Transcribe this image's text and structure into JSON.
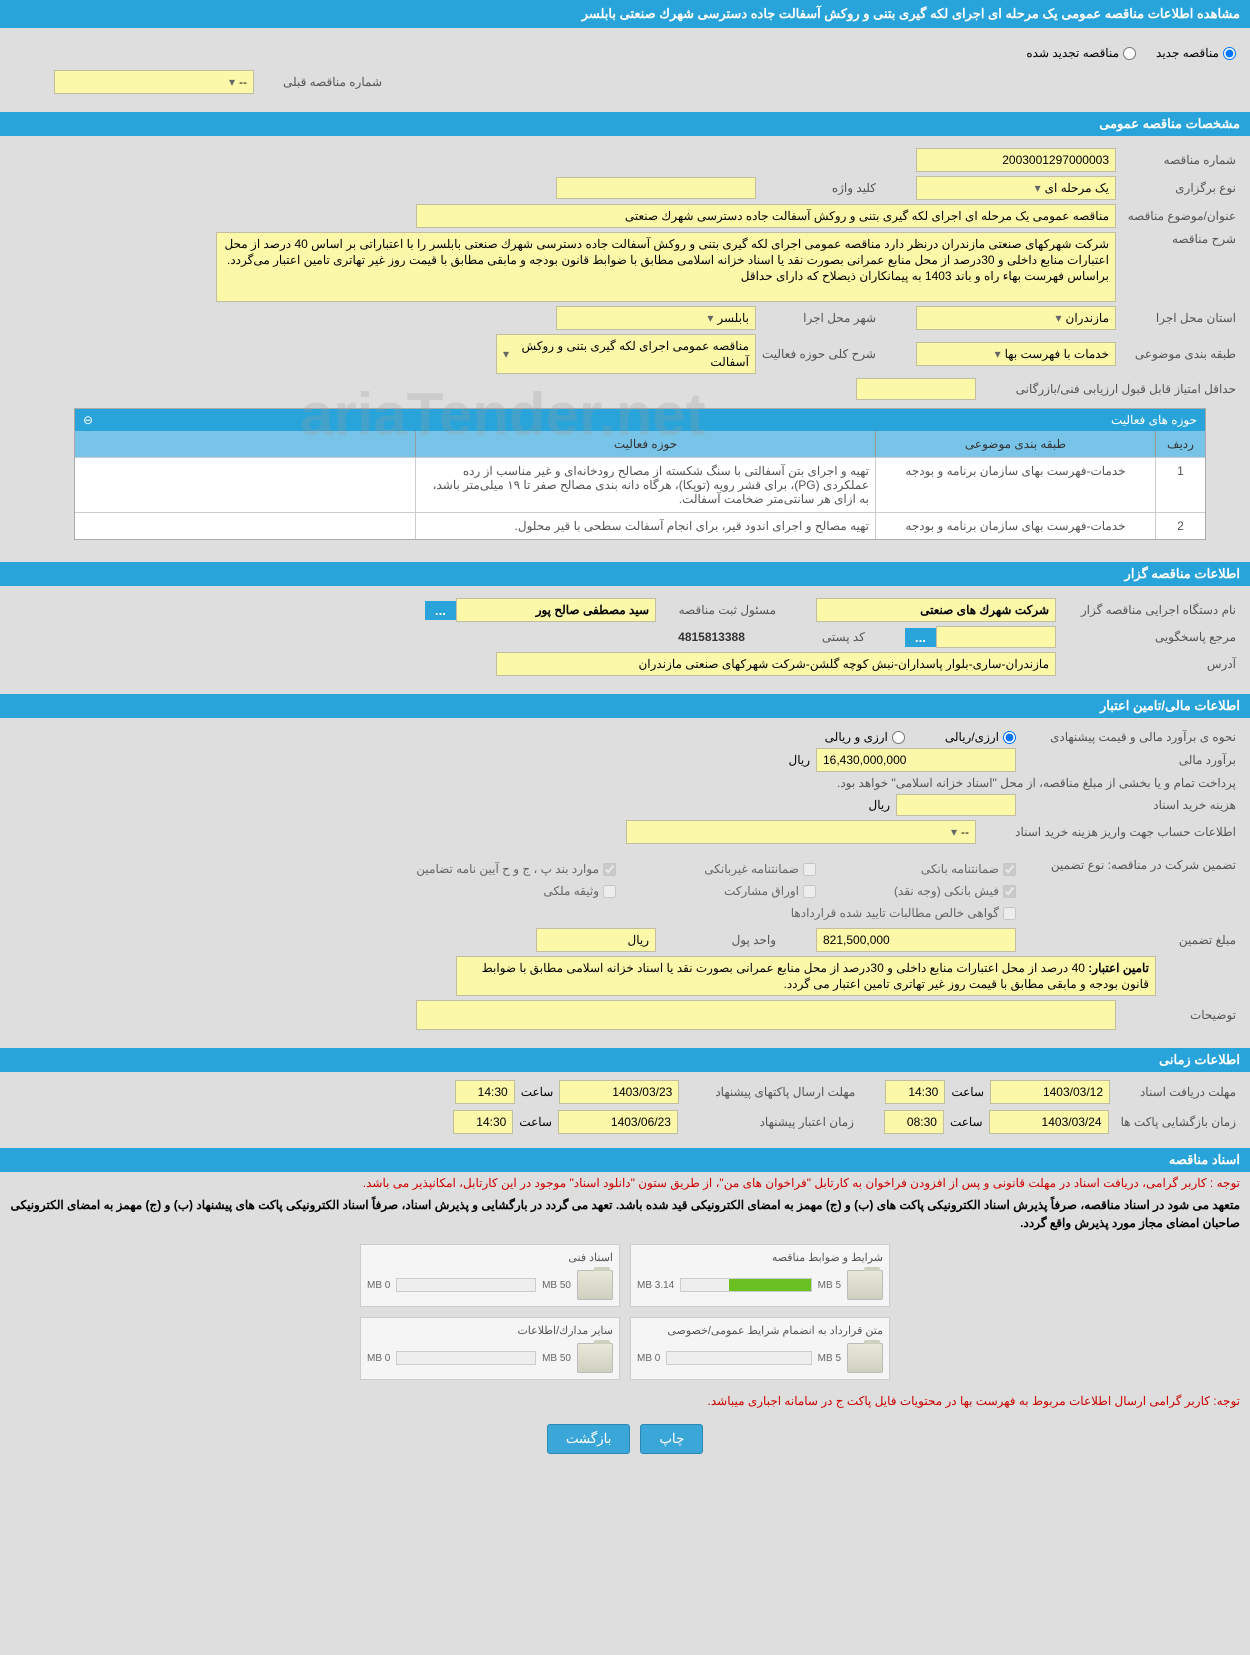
{
  "page_title": "مشاهده اطلاعات مناقصه عمومی یک مرحله ای اجرای لکه گیری بتنی و روکش آسفالت جاده دسترسی شهرك صنعتی بابلسر",
  "status_radios": {
    "new": "مناقصه جدید",
    "renewed": "مناقصه تجدید شده"
  },
  "top_left": {
    "prev_label": "شماره مناقصه قبلی",
    "prev_value": "--"
  },
  "sections": {
    "general": "مشخصات مناقصه عمومی",
    "holder": "اطلاعات مناقصه گزار",
    "finance": "اطلاعات مالی/تامین اعتبار",
    "time": "اطلاعات زمانی",
    "docs": "اسناد مناقصه"
  },
  "general": {
    "tender_no_label": "شماره مناقصه",
    "tender_no": "2003001297000003",
    "keyword_label": "کلید واژه",
    "keyword": "",
    "type_label": "نوع برگزاری",
    "type_value": "یک مرحله ای",
    "title_label": "عنوان/موضوع مناقصه",
    "title_value": "مناقصه عمومی یک مرحله ای اجرای لکه گیری بتنی و روکش آسفالت جاده دسترسی شهرك صنعتی",
    "desc_label": "شرح مناقصه",
    "desc_value": "شرکت شهرکهای صنعتی مازندران درنظر دارد مناقصه عمومی اجرای لکه گیری بتنی و روکش آسفالت جاده دسترسی شهرك صنعتی بابلسر را با اعتباراتی بر اساس 40 درصد از محل اعتبارات منابع داخلی و 30درصد از محل منابع عمرانی بصورت نقد یا اسناد خزانه اسلامی مطابق با ضوابط قانون بودجه و مابقی مطابق با قیمت روز غیر تهاتری تامین اعتبار می‌گردد.  براساس فهرست بهاء راه و باند 1403 به پیمانکاران ذیصلاح که دارای حداقل",
    "province_label": "استان محل اجرا",
    "province": "مازندران",
    "city_label": "شهر محل اجرا",
    "city": "بابلسر",
    "cat_label": "طبقه بندی موضوعی",
    "cat_value": "خدمات با فهرست بها",
    "scope_label": "شرح کلی حوزه فعالیت",
    "scope_value": "مناقصه عمومی اجرای لکه گیری بتنی و روکش آسفالت",
    "min_score_label": "حداقل امتیاز قابل قبول ارزیابی فنی/بازرگانی",
    "min_score": ""
  },
  "scopes_grid": {
    "title": "حوزه های فعالیت",
    "cols": {
      "num": "ردیف",
      "cat": "طبقه بندی موضوعی",
      "scope": "حوزه فعالیت"
    },
    "rows": [
      {
        "n": "1",
        "cat": "خدمات-فهرست بهای سازمان برنامه و بودجه",
        "scope": "تهیه و اجرای بتن آسفالتی با سنگ شکسته از مصالح رودخانه‌ای و غیر مناسب از رده عملکردی (PG)، برای قشر رویه (توپکا)، هرگاه دانه بندی مصالح صفر تا ۱۹ میلی‌متر باشد، به ازای هر سانتی‌متر ضخامت آسفالت."
      },
      {
        "n": "2",
        "cat": "خدمات-فهرست بهای سازمان برنامه و بودجه",
        "scope": "تهیه مصالح و اجرای اندود قیر، برای انجام آسفالت سطحی با قیر محلول."
      }
    ]
  },
  "holder": {
    "org_label": "نام دستگاه اجرایی مناقصه گزار",
    "org": "شرکت شهرك های صنعتی",
    "reg_label": "مسئول ثبت مناقصه",
    "reg": "سید مصطفی صالح پور",
    "resp_label": "مرجع پاسخگویی",
    "resp": "",
    "postal_label": "کد پستی",
    "postal": "4815813388",
    "addr_label": "آدرس",
    "addr": "مازندران-ساری-بلوار پاسداران-نبش کوچه گلشن-شرکت شهرکهای صنعتی مازندران"
  },
  "finance": {
    "method_label": "نحوه ی برآورد مالی و قیمت پیشنهادی",
    "opt1": "ارزی/ریالی",
    "opt2": "ارزی و ریالی",
    "estimate_label": "برآورد مالی",
    "estimate": "16,430,000,000",
    "unit": "ریال",
    "pay_note": "پرداخت تمام و یا بخشی از مبلغ مناقصه، از محل \"اسناد خزانه اسلامی\" خواهد بود.",
    "buy_label": "هزینه خرید اسناد",
    "buy": "",
    "buy_unit": "ریال",
    "acct_label": "اطلاعات حساب جهت واریز هزینه خرید اسناد",
    "acct": "--",
    "guarantee_label": "تضمین شرکت در مناقصه:   نوع تضمین",
    "cks": {
      "bank_guar": "ضمانتنامه بانکی",
      "nonbank_guar": "ضمانتنامه غیربانکی",
      "letter": "موارد بند پ ، ج و ح آیین نامه تضامین",
      "cash": "فیش بانکی (وجه نقد)",
      "bonds": "اوراق مشارکت",
      "property": "وثیقه ملکی",
      "receivables": "گواهی خالص مطالبات تایید شده قراردادها"
    },
    "amount_label": "مبلغ تضمین",
    "amount": "821,500,000",
    "unit_label": "واحد پول",
    "unit_value": "ریال",
    "credit_label": "تامین اعتبار:",
    "credit_value": "40 درصد از محل اعتبارات منابع داخلی و 30درصد از محل منابع عمرانی بصورت نقد یا اسناد خزانه اسلامی مطابق با ضوابط قانون بودجه و مابقی مطابق با قیمت روز غیر تهاتری تامین اعتبار می گردد.",
    "notes_label": "توضیحات"
  },
  "time": {
    "receive_label": "مهلت دریافت اسناد",
    "receive_date": "1403/03/12",
    "receive_time": "14:30",
    "open_label": "زمان بازگشایی پاکت ها",
    "open_date": "1403/03/24",
    "open_time": "08:30",
    "send_label": "مهلت ارسال پاکتهای پیشنهاد",
    "send_date": "1403/03/23",
    "send_time": "14:30",
    "valid_label": "زمان اعتبار پیشنهاد",
    "valid_date": "1403/06/23",
    "valid_time": "14:30",
    "clock": "ساعت"
  },
  "docs": {
    "note1": "توجه : کاربر گرامی، دریافت اسناد در مهلت قانونی و پس از افزودن فراخوان به کارتابل \"فراخوان های من\"، از طریق ستون \"دانلود اسناد\" موجود در این کارتابل، امکانپذیر می باشد.",
    "note2": "متعهد می شود در اسناد مناقصه، صرفاً پذیرش اسناد الکترونیکی پاکت های (ب) و (ج) مهمز به امضای الکترونیکی قید شده باشد. تعهد می گردد در بارگشایی و پذیرش اسناد، صرفاً اسناد الکترونیکی پاکت های پیشنهاد (ب) و (ج) مهمز به امضای الکترونیکی صاحبان امضای مجاز مورد پذیرش واقع گردد.",
    "note3": "توجه: کاربر گرامی ارسال اطلاعات مربوط به فهرست بها در محتویات فایل پاکت ج در سامانه اجباری میباشد.",
    "boxes": [
      {
        "title": "شرایط و ضوابط مناقصه",
        "max": "5 MB",
        "used": "3.14 MB",
        "pct": 63
      },
      {
        "title": "اسناد فنی",
        "max": "50 MB",
        "used": "0 MB",
        "pct": 0
      },
      {
        "title": "متن قرارداد به انضمام شرایط عمومی/خصوصی",
        "max": "5 MB",
        "used": "0 MB",
        "pct": 0
      },
      {
        "title": "سایر مدارك/اطلاعات",
        "max": "50 MB",
        "used": "0 MB",
        "pct": 0
      }
    ]
  },
  "buttons": {
    "print": "چاپ",
    "back": "بازگشت"
  },
  "watermark": "ariaTender.net",
  "colors": {
    "header": "#28a4da",
    "field": "#fcf8a9",
    "progress": "#6ac020"
  }
}
